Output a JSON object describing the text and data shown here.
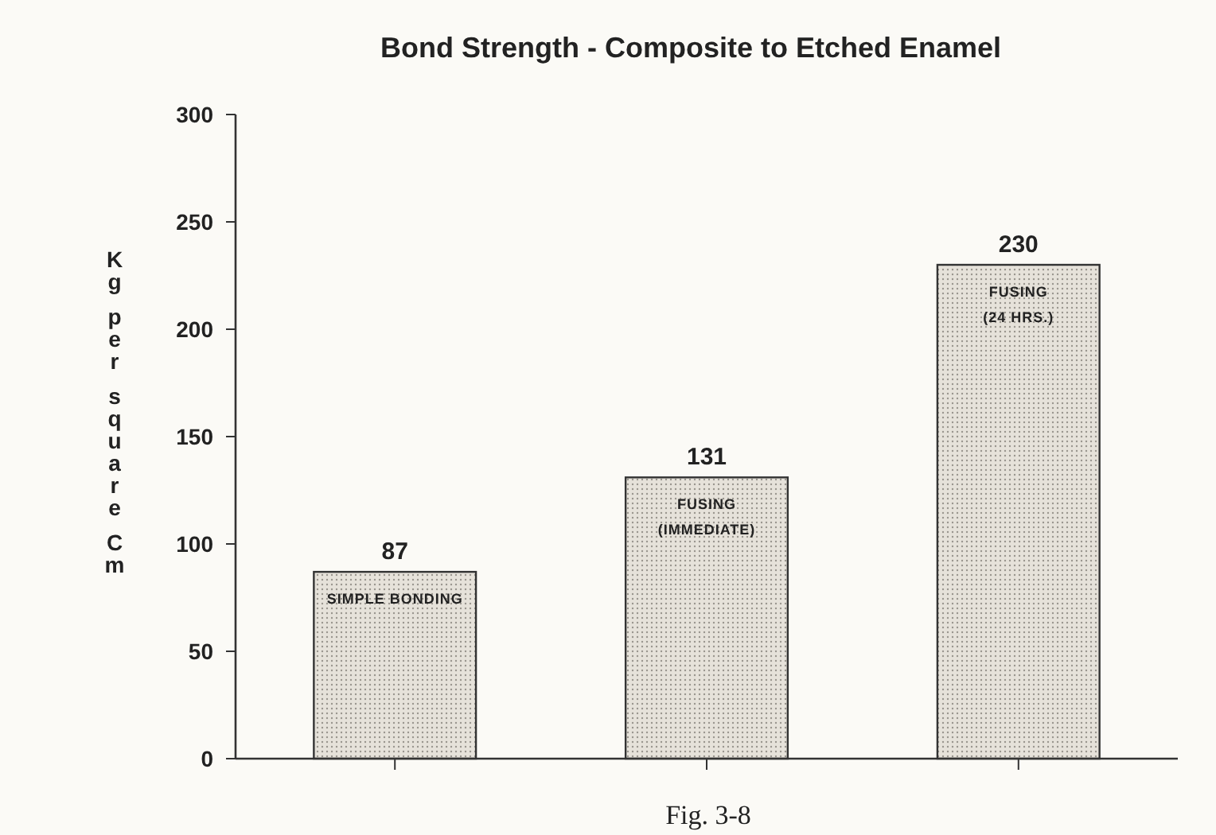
{
  "chart_data": {
    "type": "bar",
    "title": "Bond Strength - Composite to Etched Enamel",
    "ylabel": "Kg per square Cm",
    "categories": [
      "SIMPLE BONDING",
      "FUSING (IMMEDIATE)",
      "FUSING (24 HRS.)"
    ],
    "values": [
      87,
      131,
      230
    ],
    "color": "#e6e2da",
    "ylim": [
      0,
      300
    ],
    "yticks": [
      0,
      50,
      100,
      150,
      200,
      250,
      300
    ],
    "grid": false,
    "data_labels": true,
    "annotations": [
      "Fig. 3-8"
    ]
  }
}
